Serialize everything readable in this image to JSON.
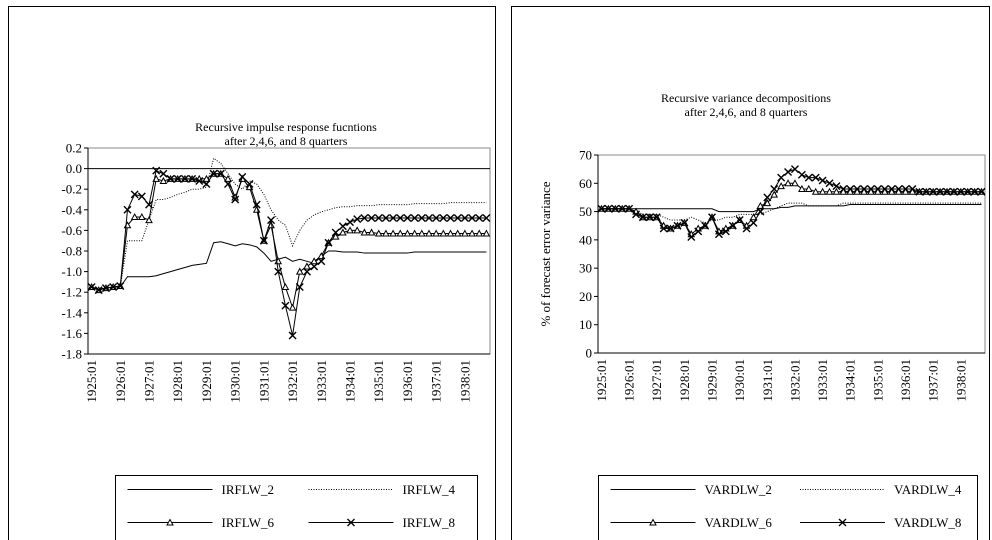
{
  "chart_data": [
    {
      "type": "line",
      "title": "Recursive impulse response fucntions",
      "subtitle": "after 2,4,6, and 8 quarters",
      "categories": [
        "1925:01",
        null,
        null,
        null,
        "1926:01",
        null,
        null,
        null,
        "1927:01",
        null,
        null,
        null,
        "1928:01",
        null,
        null,
        null,
        "1929:01",
        null,
        null,
        null,
        "1930:01",
        null,
        null,
        null,
        "1931:01",
        null,
        null,
        null,
        "1932:01",
        null,
        null,
        null,
        "1933:01",
        null,
        null,
        null,
        "1934:01",
        null,
        null,
        null,
        "1935:01",
        null,
        null,
        null,
        "1936:01",
        null,
        null,
        null,
        "1937:01",
        null,
        null,
        null,
        "1938:01",
        null,
        null,
        null
      ],
      "ylim": [
        -1.8,
        0.2
      ],
      "yticks": [
        0.2,
        {
          "value": 0,
          "label": "0.0"
        },
        -0.2,
        -0.4,
        -0.6,
        -0.8,
        {
          "value": -1,
          "label": "-1.0"
        },
        -1.2,
        -1.4,
        -1.6,
        -1.8
      ],
      "zero_line": true,
      "legend": "bottom",
      "series": [
        {
          "name": "IRFLW_2",
          "color": "#000000",
          "style": "solid",
          "marker": "none",
          "values": [
            -1.15,
            -1.17,
            -1.16,
            -1.15,
            -1.15,
            -1.05,
            -1.05,
            -1.05,
            -1.05,
            -1.04,
            -1.02,
            -1.0,
            -0.98,
            -0.96,
            -0.94,
            -0.93,
            -0.92,
            -0.72,
            -0.71,
            -0.73,
            -0.75,
            -0.73,
            -0.74,
            -0.76,
            -0.82,
            -0.9,
            -0.88,
            -0.86,
            -0.9,
            -0.88,
            -0.9,
            -0.92,
            -0.85,
            -0.8,
            -0.8,
            -0.81,
            -0.81,
            -0.81,
            -0.82,
            -0.82,
            -0.82,
            -0.82,
            -0.82,
            -0.82,
            -0.82,
            -0.81,
            -0.81,
            -0.81,
            -0.81,
            -0.81,
            -0.81,
            -0.81,
            -0.81,
            -0.81,
            -0.81,
            -0.81
          ]
        },
        {
          "name": "IRFLW_4",
          "color": "#000000",
          "style": "dotted",
          "marker": "none",
          "values": [
            -1.15,
            -1.17,
            -1.16,
            -1.15,
            -1.15,
            -0.7,
            -0.7,
            -0.7,
            -0.5,
            -0.3,
            -0.3,
            -0.28,
            -0.25,
            -0.23,
            -0.2,
            -0.2,
            -0.18,
            0.1,
            0.05,
            -0.05,
            -0.15,
            -0.2,
            -0.12,
            -0.15,
            -0.25,
            -0.4,
            -0.5,
            -0.55,
            -0.75,
            -0.6,
            -0.5,
            -0.45,
            -0.42,
            -0.4,
            -0.38,
            -0.37,
            -0.37,
            -0.36,
            -0.36,
            -0.36,
            -0.35,
            -0.35,
            -0.35,
            -0.35,
            -0.35,
            -0.34,
            -0.34,
            -0.34,
            -0.34,
            -0.34,
            -0.33,
            -0.33,
            -0.33,
            -0.33,
            -0.33,
            -0.33
          ]
        },
        {
          "name": "IRFLW_6",
          "color": "#000000",
          "style": "solid",
          "marker": "triangle",
          "values": [
            -1.15,
            -1.18,
            -1.16,
            -1.15,
            -1.14,
            -0.55,
            -0.47,
            -0.47,
            -0.5,
            -0.1,
            -0.12,
            -0.1,
            -0.1,
            -0.1,
            -0.1,
            -0.1,
            -0.1,
            -0.05,
            -0.05,
            -0.1,
            -0.28,
            -0.1,
            -0.18,
            -0.4,
            -0.7,
            -0.55,
            -0.9,
            -1.15,
            -1.35,
            -1.0,
            -0.95,
            -0.9,
            -0.85,
            -0.72,
            -0.66,
            -0.62,
            -0.6,
            -0.6,
            -0.62,
            -0.62,
            -0.63,
            -0.63,
            -0.63,
            -0.63,
            -0.63,
            -0.63,
            -0.63,
            -0.63,
            -0.63,
            -0.63,
            -0.63,
            -0.63,
            -0.63,
            -0.63,
            -0.63,
            -0.63
          ]
        },
        {
          "name": "IRFLW_8",
          "color": "#000000",
          "style": "solid",
          "marker": "x",
          "values": [
            -1.15,
            -1.18,
            -1.16,
            -1.15,
            -1.14,
            -0.4,
            -0.25,
            -0.27,
            -0.35,
            -0.02,
            -0.05,
            -0.1,
            -0.1,
            -0.1,
            -0.1,
            -0.12,
            -0.15,
            -0.05,
            -0.05,
            -0.15,
            -0.3,
            -0.08,
            -0.15,
            -0.35,
            -0.7,
            -0.5,
            -1.0,
            -1.33,
            -1.62,
            -1.15,
            -1.0,
            -0.95,
            -0.9,
            -0.72,
            -0.62,
            -0.56,
            -0.52,
            -0.49,
            -0.48,
            -0.48,
            -0.48,
            -0.48,
            -0.48,
            -0.48,
            -0.48,
            -0.48,
            -0.48,
            -0.48,
            -0.48,
            -0.48,
            -0.48,
            -0.48,
            -0.48,
            -0.48,
            -0.48,
            -0.48
          ]
        }
      ]
    },
    {
      "type": "line",
      "title": "Recursive variance decompositions",
      "subtitle": "after 2,4,6, and 8 quarters",
      "y_label": "% of forecast error variance",
      "categories": [
        "1925:01",
        null,
        null,
        null,
        "1926:01",
        null,
        null,
        null,
        "1927:01",
        null,
        null,
        null,
        "1928:01",
        null,
        null,
        null,
        "1929:01",
        null,
        null,
        null,
        "1930:01",
        null,
        null,
        null,
        "1931:01",
        null,
        null,
        null,
        "1932:01",
        null,
        null,
        null,
        "1933:01",
        null,
        null,
        null,
        "1934:01",
        null,
        null,
        null,
        "1935:01",
        null,
        null,
        null,
        "1936:01",
        null,
        null,
        null,
        "1937:01",
        null,
        null,
        null,
        "1938:01",
        null,
        null,
        null
      ],
      "ylim": [
        0,
        70
      ],
      "yticks": [
        70,
        60,
        50,
        40,
        30,
        20,
        10,
        0
      ],
      "zero_line": false,
      "legend": "bottom",
      "series": [
        {
          "name": "VARDLW_2",
          "color": "#000000",
          "style": "solid",
          "marker": "none",
          "values": [
            51,
            51,
            51,
            51,
            51,
            51,
            51,
            51,
            51,
            51,
            51,
            51,
            51,
            51,
            51,
            51,
            51,
            50,
            50,
            50,
            50,
            50,
            50,
            51,
            51,
            51,
            51.5,
            51.5,
            52,
            52,
            52,
            52,
            52,
            52,
            52,
            52,
            52.5,
            52.5,
            52.5,
            52.5,
            52.5,
            52.5,
            52.5,
            52.5,
            52.5,
            52.5,
            52.5,
            52.5,
            52.5,
            52.5,
            52.5,
            52.5,
            52.5,
            52.5,
            52.5,
            52.5
          ]
        },
        {
          "name": "VARDLW_4",
          "color": "#000000",
          "style": "dotted",
          "marker": "none",
          "values": [
            51,
            51,
            51,
            51,
            51,
            50,
            49,
            49,
            49,
            48,
            47,
            47,
            47,
            48,
            47,
            46,
            47,
            47,
            48,
            48,
            49,
            49,
            49,
            49,
            50,
            51,
            52,
            53,
            53,
            53,
            52,
            52,
            52,
            52,
            52,
            53,
            53,
            53,
            53,
            53,
            53,
            53,
            53,
            53,
            53,
            53,
            53,
            53,
            53,
            53,
            53,
            53,
            53,
            53,
            53,
            53
          ]
        },
        {
          "name": "VARDLW_6",
          "color": "#000000",
          "style": "solid",
          "marker": "triangle",
          "values": [
            51,
            51,
            51,
            51,
            51,
            50,
            48,
            48,
            48,
            45,
            44,
            45,
            46,
            42,
            44,
            45,
            48,
            43,
            44,
            45,
            47,
            45,
            48,
            52,
            53,
            56,
            59,
            60,
            60,
            58,
            58,
            57,
            57,
            57,
            57,
            57,
            57,
            57,
            57,
            57,
            57,
            57,
            57,
            57,
            57,
            57,
            57,
            57,
            57,
            57,
            57,
            57,
            57,
            57,
            57,
            57
          ]
        },
        {
          "name": "VARDLW_8",
          "color": "#000000",
          "style": "solid",
          "marker": "x",
          "values": [
            51,
            51,
            51,
            51,
            51,
            49,
            48,
            48,
            48,
            44,
            44,
            45,
            46,
            41,
            43,
            45,
            48,
            42,
            43,
            45,
            47,
            44,
            46,
            50,
            55,
            58,
            62,
            64,
            65,
            63,
            62,
            62,
            61,
            60,
            59,
            58,
            58,
            58,
            58,
            58,
            58,
            58,
            58,
            58,
            58,
            58,
            57,
            57,
            57,
            57,
            57,
            57,
            57,
            57,
            57,
            57
          ]
        }
      ]
    }
  ]
}
